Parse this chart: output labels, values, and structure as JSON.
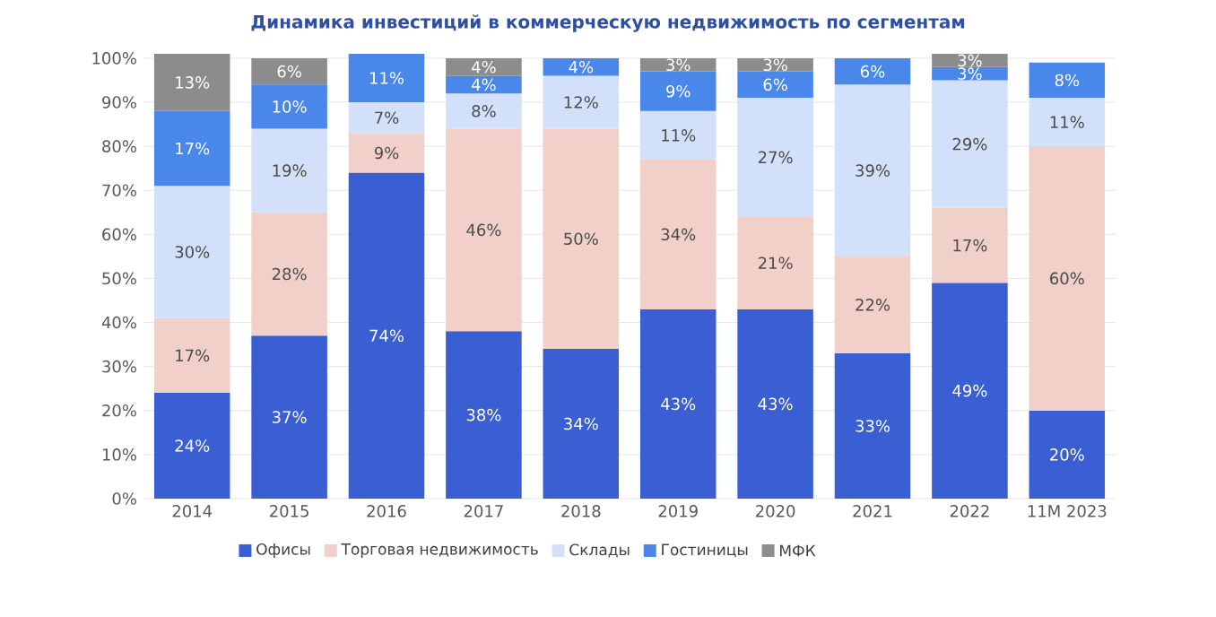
{
  "chart_data": {
    "type": "bar",
    "stacked": true,
    "title": "Динамика инвестиций в коммерческую недвижимость по сегментам",
    "categories": [
      "2014",
      "2015",
      "2016",
      "2017",
      "2018",
      "2019",
      "2020",
      "2021",
      "2022",
      "11M 2023"
    ],
    "series": [
      {
        "name": "Офисы",
        "color": "#3a5fd2",
        "values": [
          24,
          37,
          74,
          38,
          34,
          43,
          43,
          33,
          49,
          20
        ],
        "value_labels": [
          "24%",
          "37%",
          "74%",
          "38%",
          "34%",
          "43%",
          "43%",
          "33%",
          "49%",
          "20%"
        ]
      },
      {
        "name": "Торговая недвижимость",
        "color": "#f0d0c9",
        "values": [
          17,
          28,
          9,
          46,
          50,
          34,
          21,
          22,
          17,
          60
        ],
        "value_labels": [
          "17%",
          "28%",
          "9%",
          "46%",
          "50%",
          "34%",
          "21%",
          "22%",
          "17%",
          "60%"
        ]
      },
      {
        "name": "Склады",
        "color": "#d3e0f9",
        "values": [
          30,
          19,
          7,
          8,
          12,
          11,
          27,
          39,
          29,
          11
        ],
        "value_labels": [
          "30%",
          "19%",
          "7%",
          "8%",
          "12%",
          "11%",
          "27%",
          "39%",
          "29%",
          "11%"
        ]
      },
      {
        "name": "Гостиницы",
        "color": "#4a87ea",
        "values": [
          17,
          10,
          11,
          4,
          4,
          9,
          6,
          6,
          3,
          8
        ],
        "value_labels": [
          "17%",
          "10%",
          "11%",
          "4%",
          "4%",
          "9%",
          "6%",
          "6%",
          "3%",
          "8%"
        ]
      },
      {
        "name": "МФК",
        "color": "#8c8c8c",
        "values": [
          13,
          6,
          null,
          4,
          null,
          3,
          3,
          null,
          3,
          null
        ],
        "value_labels": [
          "13%",
          "6%",
          null,
          "4%",
          null,
          "3%",
          "3%",
          null,
          "3%",
          null
        ]
      }
    ],
    "ylim": [
      0,
      101
    ],
    "yticks": [
      {
        "value": 0,
        "label": "0%"
      },
      {
        "value": 10,
        "label": "10%"
      },
      {
        "value": 20,
        "label": "20%"
      },
      {
        "value": 30,
        "label": "30%"
      },
      {
        "value": 40,
        "label": "40%"
      },
      {
        "value": 50,
        "label": "50%"
      },
      {
        "value": 60,
        "label": "60%"
      },
      {
        "value": 70,
        "label": "70%"
      },
      {
        "value": 80,
        "label": "80%"
      },
      {
        "value": 90,
        "label": "90%"
      },
      {
        "value": 100,
        "label": "100%"
      }
    ],
    "grid": "y",
    "legend": "bottom"
  }
}
